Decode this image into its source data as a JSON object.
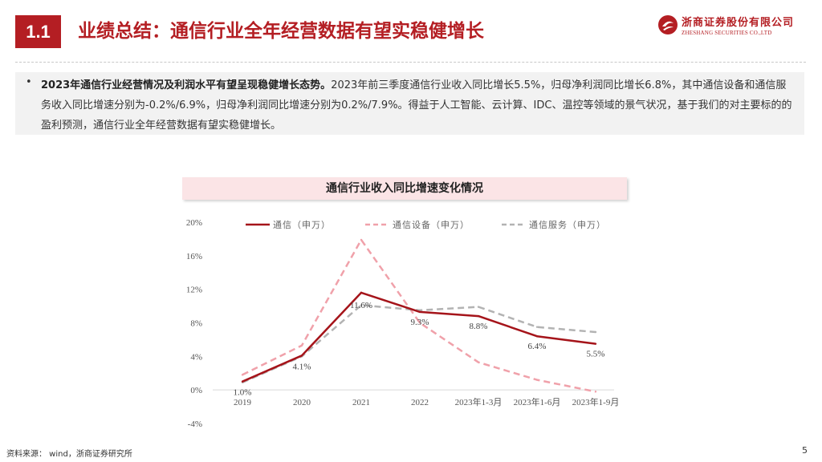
{
  "header": {
    "section_number": "1.1",
    "title": "业绩总结：通信行业全年经营数据有望实稳健增长",
    "logo_cn": "浙商证券股份有限公司",
    "logo_en": "ZHESHANG SECURITIES CO.,LTD",
    "brand_color": "#b41e23"
  },
  "summary": {
    "bullet": "•",
    "lead": "2023年通信行业经营情况及利润水平有望呈现稳健增长态势。",
    "body": "2023年前三季度通信行业收入同比增长5.5%，归母净利润同比增长6.8%，其中通信设备和通信服务收入同比增速分别为-0.2%/6.9%，归母净利润同比增速分别为0.2%/7.9%。得益于人工智能、云计算、IDC、温控等领域的景气状况，基于我们的对主要标的的盈利预测，通信行业全年经营数据有望实稳健增长。"
  },
  "chart_data": {
    "type": "line",
    "title": "通信行业收入同比增速变化情况",
    "categories": [
      "2019",
      "2020",
      "2021",
      "2022",
      "2023年1-3月",
      "2023年1-6月",
      "2023年1-9月"
    ],
    "yticks": [
      "-4%",
      "0%",
      "4%",
      "8%",
      "12%",
      "16%",
      "20%"
    ],
    "ylim": [
      -4,
      20
    ],
    "legend_position": "top",
    "series": [
      {
        "name": "通信（申万）",
        "color": "#a5141a",
        "dash": "solid",
        "values": [
          1.0,
          4.1,
          11.6,
          9.3,
          8.8,
          6.4,
          5.5
        ],
        "labels": [
          "1.0%",
          "4.1%",
          "11.6%",
          "9.3%",
          "8.8%",
          "6.4%",
          "5.5%"
        ]
      },
      {
        "name": "通信设备（申万）",
        "color": "#f0a1aa",
        "dash": "dashed",
        "values": [
          1.8,
          5.3,
          17.9,
          8.0,
          3.3,
          1.2,
          -0.2
        ]
      },
      {
        "name": "通信服务（申万）",
        "color": "#b3b3b3",
        "dash": "dashed",
        "values": [
          0.9,
          4.0,
          10.1,
          9.5,
          9.9,
          7.5,
          6.9
        ]
      }
    ]
  },
  "footer": {
    "source": "资料来源： wind，浙商证券研究所",
    "page": "5"
  }
}
